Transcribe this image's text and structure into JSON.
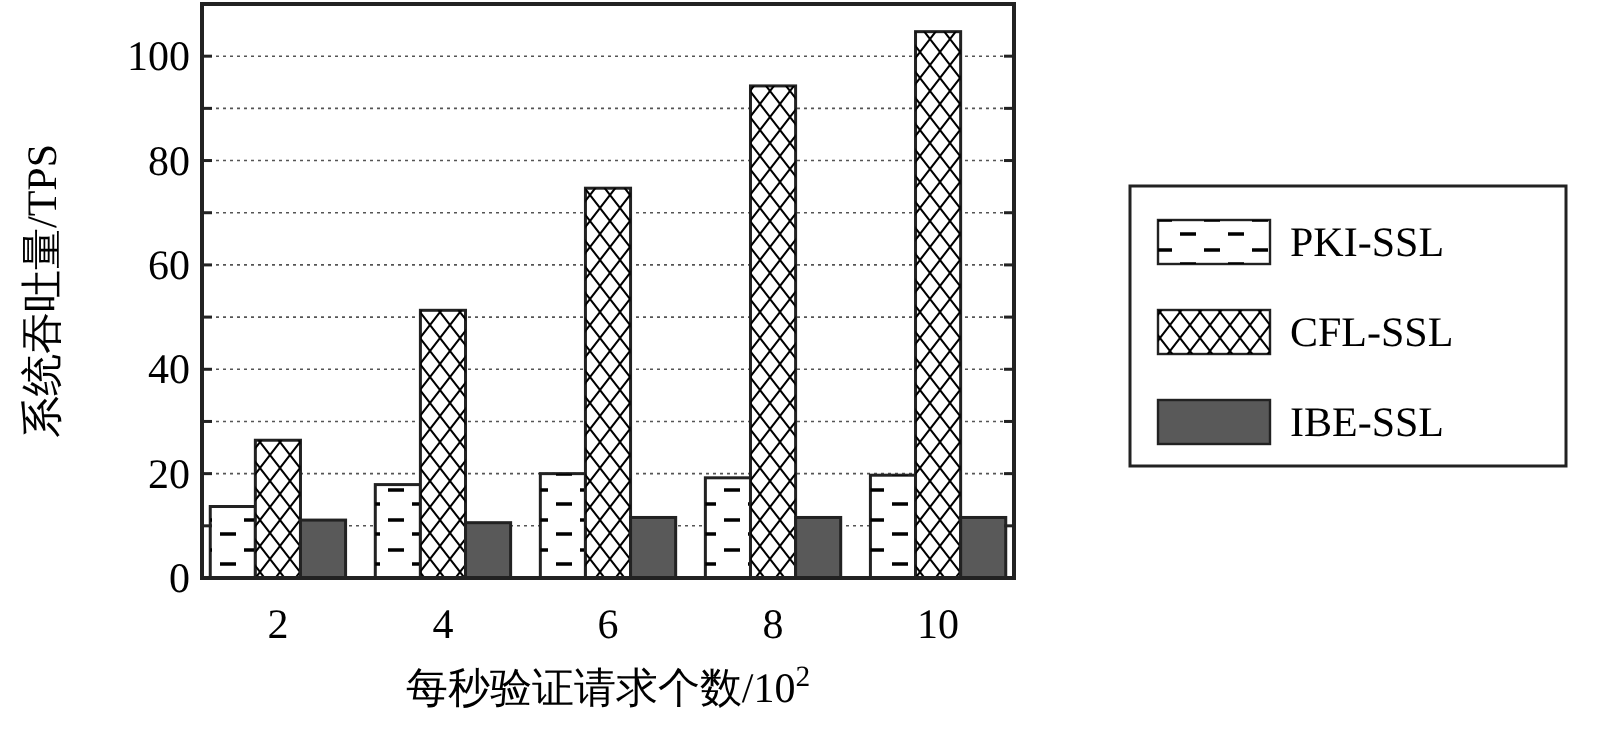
{
  "chart_data": {
    "type": "bar",
    "xlabel": "每秒验证请求个数/10$^{2}$",
    "ylabel": "系统吞吐量/TPS",
    "categories": [
      "2",
      "4",
      "6",
      "8",
      "10"
    ],
    "series": [
      {
        "name": "PKI-SSL",
        "color": "#ffffff",
        "values": [
          13.7,
          17.9,
          20,
          19.2,
          19.7
        ]
      },
      {
        "name": "CFL-SSL",
        "color": "#ffffff",
        "values": [
          26.4,
          51.3,
          74.7,
          94.3,
          104.7
        ]
      },
      {
        "name": "IBE-SSL",
        "color": "#595959",
        "values": [
          11.1,
          10.6,
          11.6,
          11.6,
          11.6
        ]
      }
    ],
    "ylim": [
      0,
      110
    ],
    "yticks": [
      0,
      {
        "value": 10,
        "label": null
      },
      20,
      {
        "value": 30,
        "label": null
      },
      40,
      {
        "value": 50,
        "label": null
      },
      60,
      {
        "value": 70,
        "label": null
      },
      80,
      {
        "value": 90,
        "label": null
      },
      100
    ],
    "grid": "y",
    "legend": "right"
  }
}
